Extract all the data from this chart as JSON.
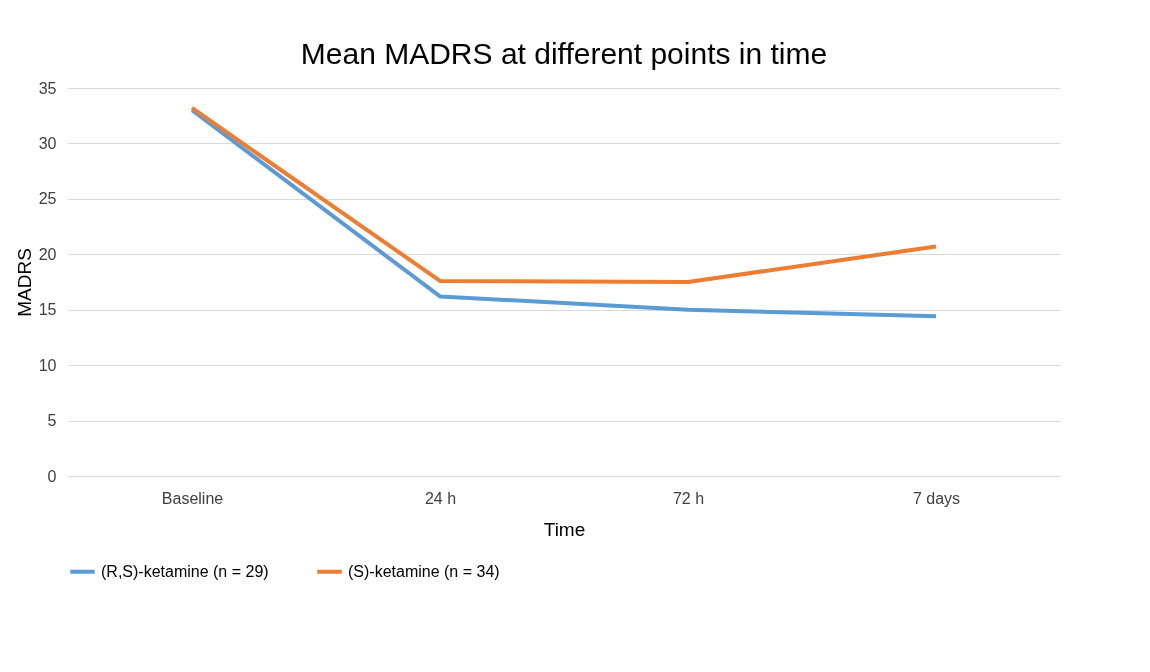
{
  "chart_data": {
    "type": "line",
    "title": "Mean MADRS at different points in time",
    "xlabel": "Time",
    "ylabel": "MADRS",
    "categories": [
      "Baseline",
      "24 h",
      "72 h",
      "7 days"
    ],
    "series": [
      {
        "name": "(R,S)-ketamine (n = 29)",
        "color": "#5b9bd5",
        "values": [
          33.0,
          16.2,
          15.0,
          14.4
        ]
      },
      {
        "name": "(S)-ketamine (n = 34)",
        "color": "#ed7d31",
        "values": [
          33.2,
          17.6,
          17.5,
          20.7
        ]
      }
    ],
    "ylim": [
      0,
      35
    ],
    "yticks": [
      0,
      5,
      10,
      15,
      20,
      25,
      30,
      35
    ],
    "grid": "y",
    "legend": "bottom",
    "marker": "none",
    "line_style": "solid"
  }
}
